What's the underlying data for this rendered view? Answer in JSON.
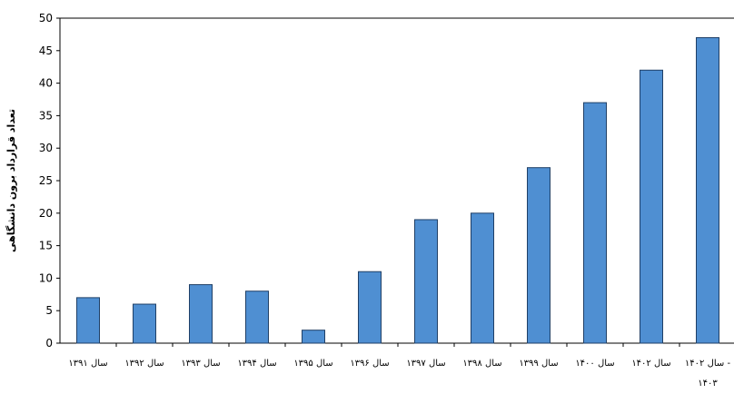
{
  "chart_data": {
    "type": "bar",
    "ylabel": "تعداد قرارداد برون دانشگاهی",
    "xlabel": "",
    "categories": [
      "سال ۱۳۹۱",
      "سال ۱۳۹۲",
      "سال ۱۳۹۳",
      "سال ۱۳۹۴",
      "سال ۱۳۹۵",
      "سال ۱۳۹۶",
      "سال ۱۳۹۷",
      "سال ۱۳۹۸",
      "سال ۱۳۹۹",
      "سال ۱۴۰۰",
      "سال ۱۴۰۲",
      "سال ۱۴۰۲ - ۱۴۰۳"
    ],
    "values": [
      7,
      6,
      9,
      8,
      2,
      11,
      19,
      20,
      27,
      37,
      42,
      47
    ],
    "ylim": [
      0,
      50
    ],
    "yticks": [
      "0",
      "5",
      "10",
      "15",
      "20",
      "25",
      "30",
      "35",
      "40",
      "45",
      "50"
    ],
    "grid": false,
    "legend": "none",
    "bar_color": "#4f8fd2",
    "bar_edge_color": "#1f3f66"
  }
}
